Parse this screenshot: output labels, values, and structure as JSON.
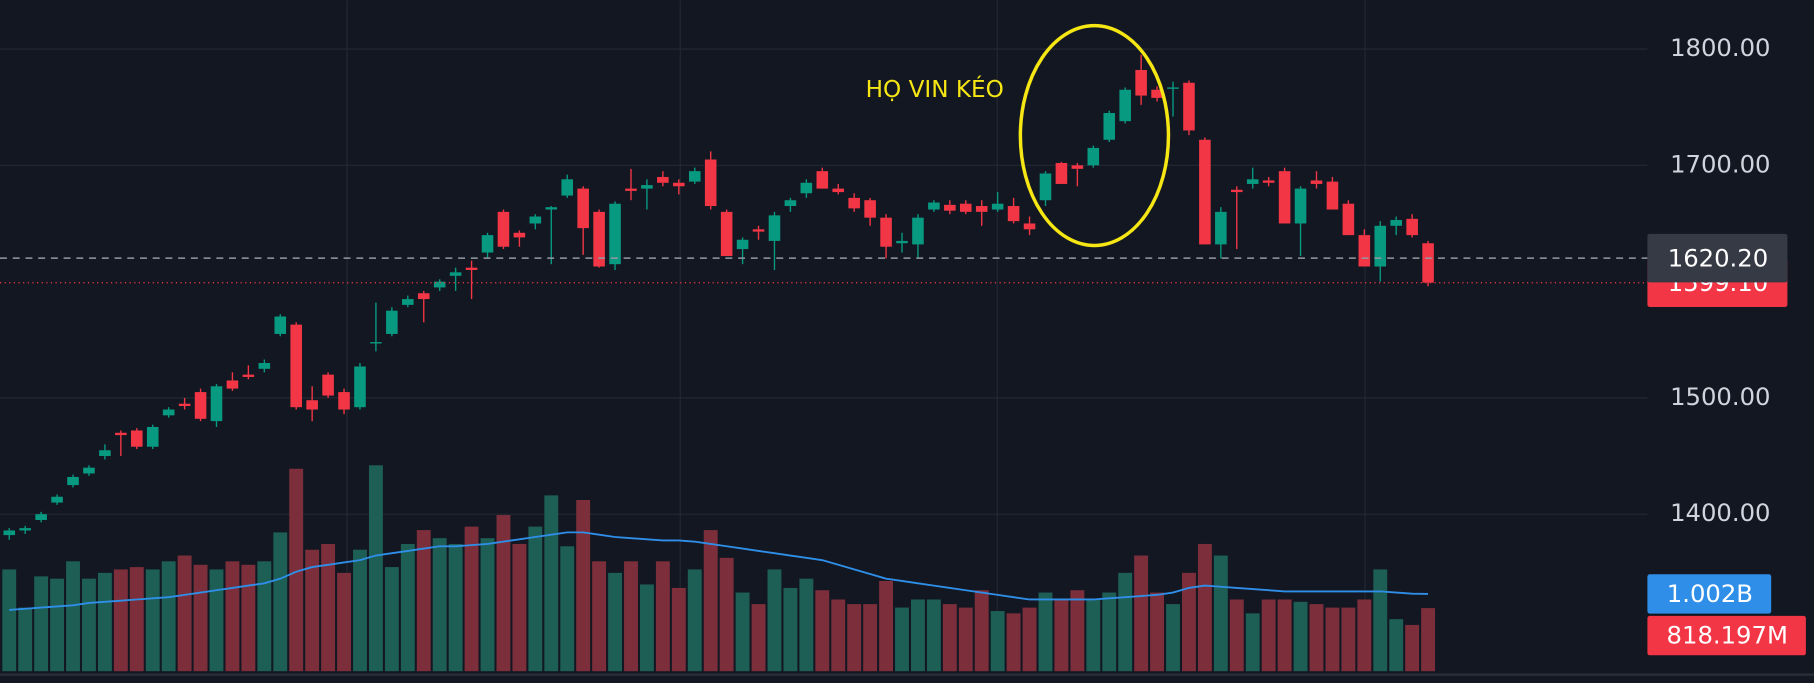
{
  "chart_data": {
    "type": "candlestick",
    "annotation": "HỌ VIN KÉO",
    "up_color": "#089981",
    "down_color": "#f23645",
    "volume_up_color": "#1d5e55",
    "volume_down_color": "#7c2f3b",
    "volume_ma_color": "#2f8fe8",
    "ylim": [
      1255,
      1842
    ],
    "yticks": [
      {
        "value": 1800,
        "label": "1800.00"
      },
      {
        "value": 1700,
        "label": "1700.00"
      },
      {
        "value": 1500,
        "label": "1500.00"
      },
      {
        "value": 1400,
        "label": "1400.00"
      }
    ],
    "grid": true,
    "price_lines": [
      {
        "value": 1620.2,
        "label": "1620.20"
      },
      {
        "value": 1599.1,
        "label": "1599.10"
      }
    ],
    "open": [
      1382,
      1386,
      1395,
      1410,
      1425,
      1435,
      1450,
      1470,
      1472,
      1458,
      1485,
      1495,
      1505,
      1480,
      1515,
      1520,
      1525,
      1555,
      1563,
      1498,
      1520,
      1505,
      1492,
      1547,
      1555,
      1580,
      1590,
      1595,
      1605,
      1612,
      1625,
      1660,
      1642,
      1650,
      1662,
      1674,
      1680,
      1660,
      1615,
      1680,
      1680,
      1690,
      1685,
      1686,
      1705,
      1660,
      1628,
      1645,
      1635,
      1665,
      1676,
      1695,
      1680,
      1672,
      1670,
      1655,
      1633,
      1632,
      1662,
      1666,
      1667,
      1665,
      1662,
      1665,
      1650,
      1670,
      1702,
      1700,
      1700,
      1722,
      1738,
      1782,
      1765,
      1766,
      1771,
      1722,
      1632,
      1679,
      1684,
      1687,
      1695,
      1650,
      1687,
      1686,
      1667,
      1640,
      1613,
      1648,
      1654,
      1633
    ],
    "high": [
      1388,
      1390,
      1402,
      1417,
      1434,
      1442,
      1460,
      1472,
      1474,
      1477,
      1492,
      1500,
      1508,
      1512,
      1522,
      1528,
      1533,
      1572,
      1565,
      1510,
      1522,
      1508,
      1530,
      1582,
      1578,
      1588,
      1592,
      1602,
      1612,
      1618,
      1642,
      1662,
      1644,
      1658,
      1665,
      1692,
      1682,
      1662,
      1669,
      1697,
      1688,
      1695,
      1688,
      1698,
      1712,
      1662,
      1638,
      1648,
      1660,
      1672,
      1688,
      1698,
      1684,
      1676,
      1672,
      1658,
      1642,
      1658,
      1670,
      1670,
      1670,
      1670,
      1677,
      1672,
      1656,
      1695,
      1703,
      1702,
      1717,
      1747,
      1767,
      1795,
      1768,
      1772,
      1773,
      1724,
      1664,
      1682,
      1698,
      1690,
      1698,
      1682,
      1695,
      1690,
      1670,
      1645,
      1652,
      1656,
      1658,
      1635
    ],
    "low": [
      1378,
      1383,
      1393,
      1408,
      1423,
      1433,
      1447,
      1450,
      1456,
      1456,
      1483,
      1490,
      1480,
      1475,
      1506,
      1516,
      1522,
      1553,
      1490,
      1480,
      1500,
      1486,
      1490,
      1540,
      1553,
      1578,
      1565,
      1592,
      1592,
      1585,
      1620,
      1628,
      1630,
      1645,
      1615,
      1672,
      1623,
      1612,
      1610,
      1670,
      1662,
      1682,
      1675,
      1684,
      1662,
      1622,
      1615,
      1636,
      1610,
      1660,
      1672,
      1680,
      1675,
      1660,
      1648,
      1620,
      1625,
      1620,
      1660,
      1658,
      1658,
      1648,
      1660,
      1650,
      1640,
      1665,
      1684,
      1682,
      1698,
      1720,
      1736,
      1752,
      1755,
      1742,
      1726,
      1632,
      1620,
      1628,
      1680,
      1682,
      1650,
      1622,
      1680,
      1662,
      1640,
      1613,
      1600,
      1640,
      1638,
      1596
    ],
    "close": [
      1386,
      1388,
      1400,
      1415,
      1432,
      1440,
      1455,
      1468,
      1458,
      1475,
      1490,
      1493,
      1482,
      1510,
      1508,
      1518,
      1530,
      1570,
      1492,
      1490,
      1502,
      1490,
      1527,
      1548,
      1575,
      1585,
      1585,
      1600,
      1608,
      1610,
      1640,
      1630,
      1638,
      1656,
      1664,
      1688,
      1646,
      1613,
      1667,
      1678,
      1683,
      1685,
      1682,
      1695,
      1665,
      1622,
      1636,
      1643,
      1657,
      1670,
      1685,
      1680,
      1677,
      1663,
      1655,
      1630,
      1635,
      1655,
      1668,
      1661,
      1660,
      1660,
      1667,
      1652,
      1645,
      1693,
      1684,
      1697,
      1715,
      1745,
      1765,
      1760,
      1758,
      1767,
      1730,
      1632,
      1660,
      1677,
      1688,
      1685,
      1650,
      1680,
      1684,
      1662,
      1640,
      1613,
      1648,
      1653,
      1640,
      1599.1
    ],
    "volume_lim": [
      0,
      8700
    ],
    "volume": [
      1320,
      825,
      1230,
      1200,
      1425,
      1200,
      1275,
      1320,
      1350,
      1320,
      1425,
      1500,
      1380,
      1320,
      1425,
      1380,
      1425,
      1800,
      2625,
      1575,
      1650,
      1275,
      1575,
      2670,
      1350,
      1650,
      1830,
      1725,
      1650,
      1875,
      1725,
      2025,
      1650,
      1875,
      2280,
      1620,
      2220,
      1425,
      1275,
      1425,
      1125,
      1425,
      1080,
      1320,
      1830,
      1470,
      1020,
      870,
      1320,
      1080,
      1200,
      1050,
      930,
      870,
      870,
      1170,
      825,
      930,
      930,
      870,
      825,
      1050,
      780,
      750,
      825,
      1020,
      930,
      1050,
      930,
      1020,
      1275,
      1500,
      1020,
      870,
      1275,
      1650,
      1500,
      930,
      750,
      930,
      930,
      900,
      870,
      825,
      825,
      930,
      1320,
      675,
      600,
      818.197
    ],
    "volume_value_label": "818.197M",
    "volume_ma": [
      795,
      810,
      825,
      840,
      855,
      885,
      900,
      915,
      930,
      945,
      960,
      990,
      1020,
      1050,
      1080,
      1110,
      1140,
      1200,
      1290,
      1350,
      1380,
      1410,
      1440,
      1500,
      1530,
      1560,
      1590,
      1620,
      1620,
      1635,
      1650,
      1680,
      1710,
      1740,
      1770,
      1800,
      1800,
      1770,
      1740,
      1725,
      1710,
      1695,
      1695,
      1680,
      1650,
      1620,
      1590,
      1560,
      1530,
      1500,
      1470,
      1440,
      1380,
      1320,
      1260,
      1200,
      1170,
      1140,
      1110,
      1080,
      1050,
      1020,
      990,
      960,
      930,
      930,
      930,
      930,
      930,
      945,
      960,
      975,
      990,
      1020,
      1080,
      1110,
      1095,
      1080,
      1065,
      1050,
      1035,
      1035,
      1035,
      1035,
      1035,
      1035,
      1035,
      1020,
      1005,
      1002
    ],
    "volume_ma_value_label": "1.002B"
  }
}
